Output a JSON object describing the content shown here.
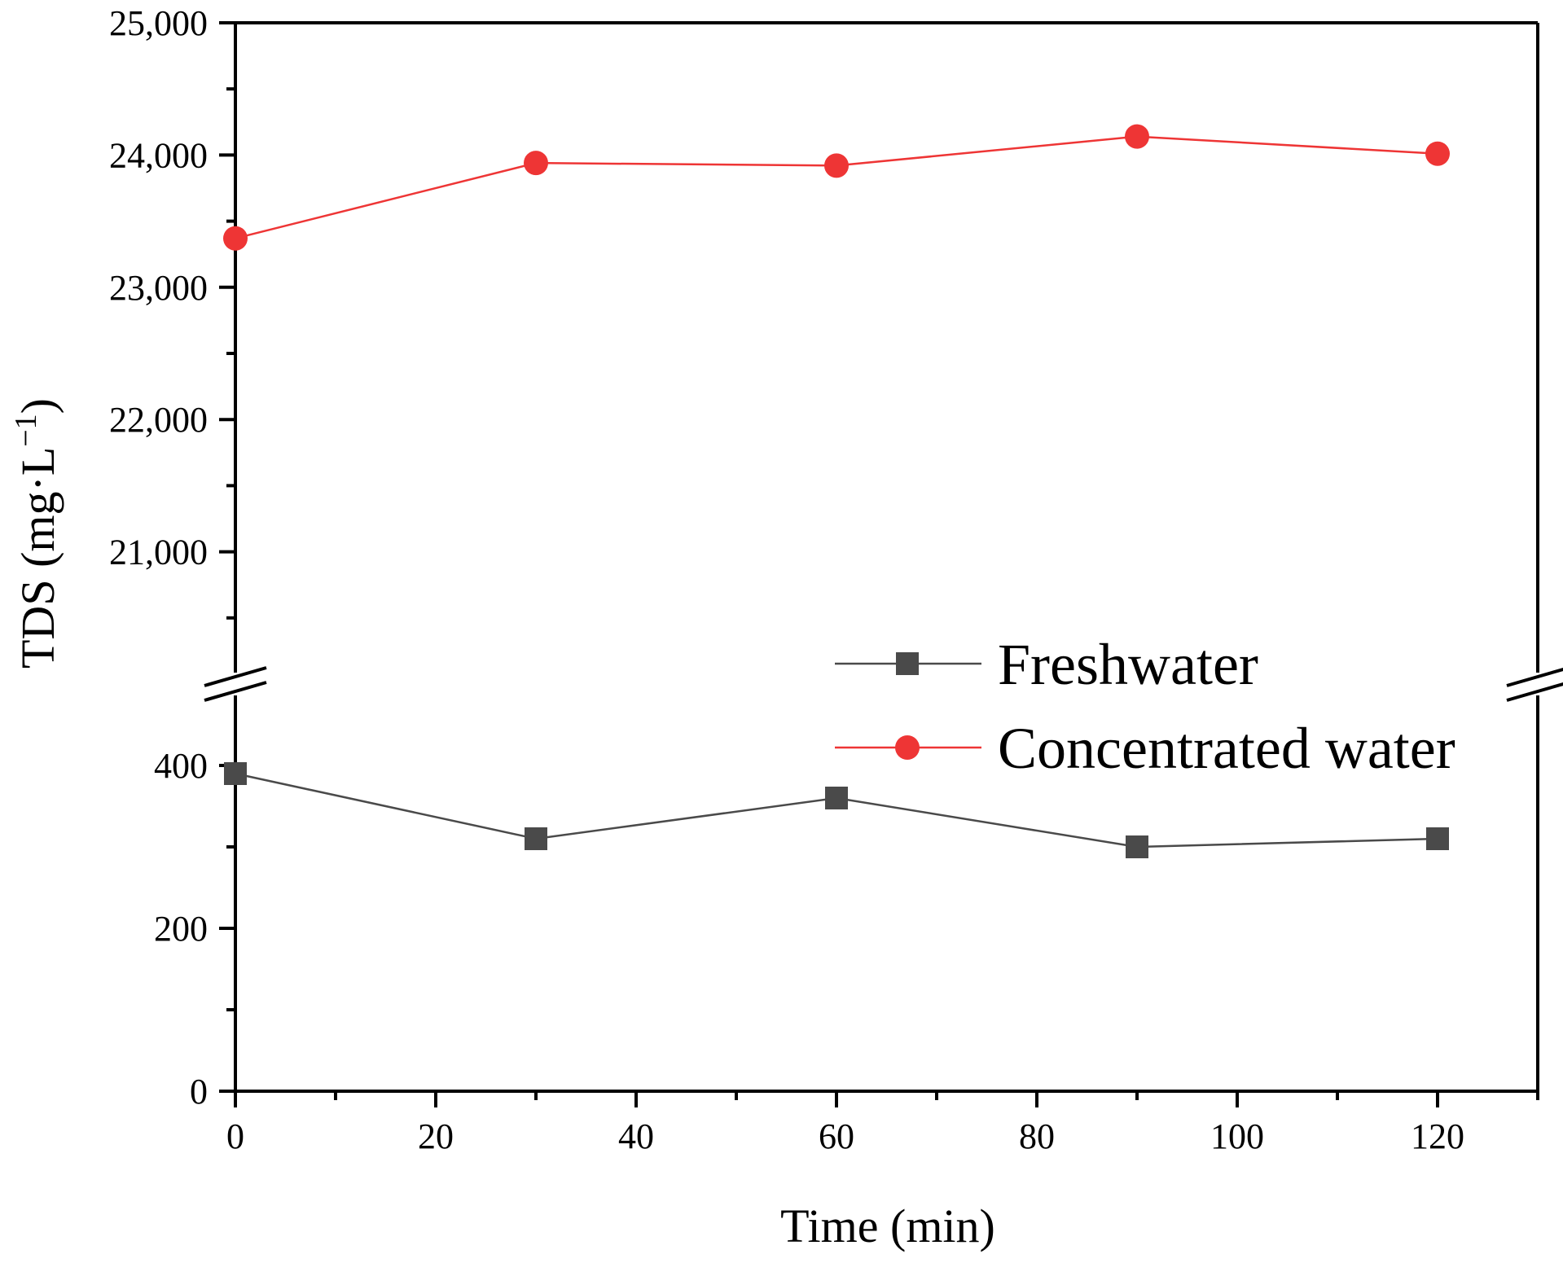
{
  "chart_data": {
    "type": "line",
    "title": "",
    "xlabel": "Time (min)",
    "ylabel_main": "TDS (mg·L",
    "ylabel_sup": "−1",
    "ylabel_close": ")",
    "xlim": [
      0,
      130
    ],
    "x_ticks": [
      0,
      20,
      40,
      60,
      80,
      100,
      120
    ],
    "x_tick_labels": [
      "0",
      "20",
      "40",
      "60",
      "80",
      "100",
      "120"
    ],
    "y_axis_broken": true,
    "y_lower_range": [
      0,
      500
    ],
    "y_lower_ticks": [
      0,
      200,
      400
    ],
    "y_lower_tick_labels": [
      "0",
      "200",
      "400"
    ],
    "y_upper_range": [
      20000,
      25000
    ],
    "y_upper_ticks": [
      21000,
      22000,
      23000,
      24000,
      25000
    ],
    "y_upper_tick_labels": [
      "21,000",
      "22,000",
      "23,000",
      "24,000",
      "25,000"
    ],
    "legend_position": "center-right",
    "x": [
      0,
      30,
      60,
      90,
      120
    ],
    "series": [
      {
        "name": "Freshwater",
        "marker": "square",
        "color": "#4a4a4a",
        "segment": "lower",
        "values": [
          390,
          310,
          360,
          300,
          310
        ]
      },
      {
        "name": "Concentrated water",
        "marker": "circle",
        "color": "#ee3535",
        "segment": "upper",
        "values": [
          23370,
          23940,
          23920,
          24140,
          24010
        ]
      }
    ]
  }
}
